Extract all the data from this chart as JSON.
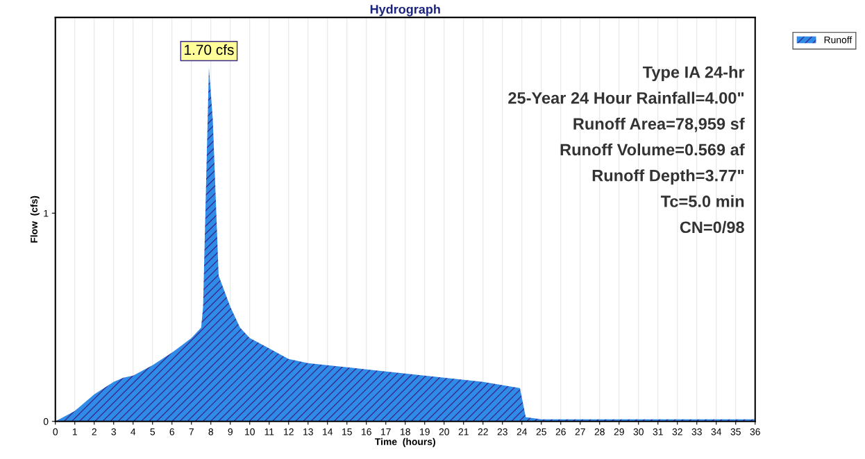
{
  "chart_data": {
    "type": "area",
    "title": "Hydrograph",
    "xlabel": "Time  (hours)",
    "ylabel": "Flow  (cfs)",
    "x": [
      0,
      1,
      2,
      3,
      3.5,
      4,
      5,
      6,
      7,
      7.5,
      7.6,
      7.9,
      8.1,
      8.4,
      9,
      9.5,
      10,
      11,
      12,
      13,
      14,
      16,
      18,
      20,
      22,
      23.9,
      24.2,
      25,
      36
    ],
    "series": [
      {
        "name": "Runoff",
        "color": "#2f8be8",
        "values": [
          0,
          0.05,
          0.13,
          0.19,
          0.21,
          0.22,
          0.27,
          0.33,
          0.4,
          0.45,
          0.55,
          1.7,
          1.45,
          0.7,
          0.55,
          0.45,
          0.4,
          0.35,
          0.3,
          0.28,
          0.27,
          0.25,
          0.23,
          0.21,
          0.19,
          0.16,
          0.02,
          0.01,
          0.01
        ]
      }
    ],
    "xlim": [
      0,
      36
    ],
    "xticks": [
      0,
      1,
      2,
      3,
      4,
      5,
      6,
      7,
      8,
      9,
      10,
      11,
      12,
      13,
      14,
      15,
      16,
      17,
      18,
      19,
      20,
      21,
      22,
      23,
      24,
      25,
      26,
      27,
      28,
      29,
      30,
      31,
      32,
      33,
      34,
      35,
      36
    ],
    "ylim": [
      0,
      1.94
    ],
    "yticks": [
      0,
      1
    ],
    "grid": "x",
    "legend": "top right",
    "annotations": [
      {
        "text": "1.70 cfs",
        "x": 7.9,
        "y": 1.7
      },
      "Type IA 24-hr",
      "25-Year 24 Hour Rainfall=4.00\"",
      "Runoff Area=78,959 sf",
      "Runoff Volume=0.569 af",
      "Runoff Depth=3.77\"",
      "Tc=5.0 min",
      "CN=0/98"
    ]
  }
}
